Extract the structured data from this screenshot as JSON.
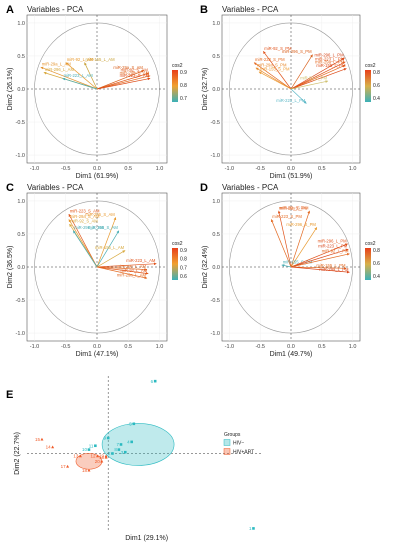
{
  "panels": [
    {
      "label": "A",
      "title": "Variables - PCA",
      "xlabel": "Dim1 (61.9%)",
      "ylabel": "Dim2 (26.1%)",
      "legend_title": "cos2",
      "legend_ticks": [
        "0.9",
        "0.8",
        "0.7"
      ],
      "x_ticks": [
        "-1.0",
        "-0.5",
        "0.0",
        "0.5",
        "1.0"
      ],
      "y_ticks": [
        "1.0",
        "0.5",
        "0.0",
        "-0.5",
        "-1.0"
      ],
      "vectors": [
        {
          "label": "miR-29a_S_AM",
          "x": 0.75,
          "y": 0.28,
          "color": "#d9601c"
        },
        {
          "label": "miR-92_S_AM",
          "x": 0.83,
          "y": 0.24,
          "color": "#e0561a"
        },
        {
          "label": "miR-296_S_AM",
          "x": 0.85,
          "y": 0.2,
          "color": "#e36a22"
        },
        {
          "label": "miR-223_S_AM",
          "x": 0.85,
          "y": 0.16,
          "color": "#dd4a17"
        },
        {
          "label": "miR-155_L_AM",
          "x": -0.2,
          "y": 0.4,
          "color": "#c8a23a"
        },
        {
          "label": "miR-92_L_AM",
          "x": -0.5,
          "y": 0.4,
          "color": "#e89a30"
        },
        {
          "label": "miR-29a_L_AM",
          "x": -0.9,
          "y": 0.33,
          "color": "#e49532"
        },
        {
          "label": "miR-296_L_AM",
          "x": -0.85,
          "y": 0.25,
          "color": "#d8a93e"
        },
        {
          "label": "miR-223_L_AM",
          "x": -0.55,
          "y": 0.16,
          "color": "#4aaeb5"
        }
      ]
    },
    {
      "label": "B",
      "title": "Variables - PCA",
      "xlabel": "Dim1 (51.9%)",
      "ylabel": "Dim2 (32.7%)",
      "legend_title": "cos2",
      "legend_ticks": [
        "0.8",
        "0.6",
        "0.4"
      ],
      "x_ticks": [
        "-1.0",
        "-0.5",
        "0.0",
        "0.5",
        "1.0"
      ],
      "y_ticks": [
        "1.0",
        "0.5",
        "0.0",
        "-0.5",
        "-1.0"
      ],
      "vectors": [
        {
          "label": "miR-92_S_PM",
          "x": -0.45,
          "y": 0.57,
          "color": "#e0521a"
        },
        {
          "label": "miR-296_S_PM",
          "x": 0.35,
          "y": 0.52,
          "color": "#d9601c"
        },
        {
          "label": "miR-223_S_PM",
          "x": -0.6,
          "y": 0.4,
          "color": "#e46b24"
        },
        {
          "label": "miR-29a_S_PM",
          "x": -0.57,
          "y": 0.32,
          "color": "#e88a2c"
        },
        {
          "label": "miR-155_S_PM",
          "x": -0.52,
          "y": 0.26,
          "color": "#ec9a32"
        },
        {
          "label": "miR-296_L_PM",
          "x": 0.87,
          "y": 0.47,
          "color": "#d9461a"
        },
        {
          "label": "miR-223_L_PM",
          "x": 0.88,
          "y": 0.41,
          "color": "#e0521a"
        },
        {
          "label": "miR-29a_L_PM",
          "x": 0.88,
          "y": 0.36,
          "color": "#e46b24"
        },
        {
          "label": "miR-155_L_PM",
          "x": 0.9,
          "y": 0.31,
          "color": "#dd4a17"
        },
        {
          "label": "miR-92_L_PM",
          "x": 0.6,
          "y": 0.12,
          "color": "#cfc06e"
        },
        {
          "label": "miR-223_L_PM",
          "x": 0.25,
          "y": -0.22,
          "color": "#5ab7c6"
        }
      ]
    },
    {
      "label": "C",
      "title": "Variables - PCA",
      "xlabel": "Dim1 (47.1%)",
      "ylabel": "Dim2 (36.5%)",
      "legend_title": "cos2",
      "legend_ticks": [
        "0.9",
        "0.8",
        "0.7",
        "0.6"
      ],
      "x_ticks": [
        "-1.0",
        "-0.5",
        "0.0",
        "0.5",
        "1.0"
      ],
      "y_ticks": [
        "1.0",
        "0.5",
        "0.0",
        "-0.5",
        "-1.0"
      ],
      "vectors": [
        {
          "label": "miR-223_S_AM",
          "x": -0.45,
          "y": 0.8,
          "color": "#e0561a"
        },
        {
          "label": "miR-29a_S_AM",
          "x": -0.45,
          "y": 0.72,
          "color": "#e89a30"
        },
        {
          "label": "miR-92_S_AM",
          "x": -0.44,
          "y": 0.65,
          "color": "#d8a93e"
        },
        {
          "label": "miR-296_S_AM",
          "x": -0.38,
          "y": 0.55,
          "color": "#4aaeb5"
        },
        {
          "label": "miR-296_S_AM",
          "x": 0.3,
          "y": 0.75,
          "color": "#e89a30"
        },
        {
          "label": "miR-155_S_AM",
          "x": 0.35,
          "y": 0.55,
          "color": "#4aaeb5"
        },
        {
          "label": "miR-155_L_AM",
          "x": 0.45,
          "y": 0.25,
          "color": "#d8a93e"
        },
        {
          "label": "miR-223_L_AM",
          "x": 0.95,
          "y": 0.05,
          "color": "#e0521a"
        },
        {
          "label": "miR-296_L_AM",
          "x": 0.8,
          "y": -0.04,
          "color": "#e46b24"
        },
        {
          "label": "miR-92_L_AM",
          "x": 0.82,
          "y": -0.1,
          "color": "#e0561a"
        },
        {
          "label": "miR-29a_L_AM",
          "x": 0.8,
          "y": -0.17,
          "color": "#e36a22"
        }
      ]
    },
    {
      "label": "D",
      "title": "Variables - PCA",
      "xlabel": "Dim1 (49.7%)",
      "ylabel": "Dim2 (32.4%)",
      "legend_title": "cos2",
      "legend_ticks": [
        "0.8",
        "0.6",
        "0.4"
      ],
      "x_ticks": [
        "-1.0",
        "-0.5",
        "0.0",
        "0.5",
        "1.0"
      ],
      "y_ticks": [
        "1.0",
        "0.5",
        "0.0",
        "-0.5",
        "-1.0"
      ],
      "vectors": [
        {
          "label": "miR-92_S_PM",
          "x": -0.2,
          "y": 0.85,
          "color": "#e0521a"
        },
        {
          "label": "miR-29a_S_PM",
          "x": 0.3,
          "y": 0.85,
          "color": "#e36a22"
        },
        {
          "label": "miR-223_S_PM",
          "x": -0.32,
          "y": 0.72,
          "color": "#e46b24"
        },
        {
          "label": "miR-296_S_PM",
          "x": 0.42,
          "y": 0.6,
          "color": "#e89a30"
        },
        {
          "label": "miR-155_S_PM",
          "x": -0.15,
          "y": 0.03,
          "color": "#4aaeb5"
        },
        {
          "label": "miR-296_L_PM",
          "x": 0.92,
          "y": 0.35,
          "color": "#e0521a"
        },
        {
          "label": "miR-223_L_PM",
          "x": 0.93,
          "y": 0.27,
          "color": "#d9461a"
        },
        {
          "label": "miR-92_L_PM",
          "x": 0.95,
          "y": 0.2,
          "color": "#e46b24"
        },
        {
          "label": "miR-155_L_PM",
          "x": 0.9,
          "y": -0.02,
          "color": "#e36a22"
        },
        {
          "label": "miR-29a_L_PM",
          "x": 0.95,
          "y": -0.08,
          "color": "#d9461a"
        }
      ]
    }
  ],
  "individuals": {
    "label": "E",
    "title": "Individuals - PCA",
    "xlabel": "Dim1 (29.1%)",
    "ylabel": "Dim2 (22.7%)",
    "legend_title": "Groups",
    "groups": [
      {
        "name": "HIV−",
        "color": "#2bbac1",
        "marker": "square"
      },
      {
        "name": "HIV+ART",
        "color": "#f05a28",
        "marker": "triangle"
      }
    ],
    "points": [
      {
        "label": "1",
        "x": 3.4,
        "y": -2.9,
        "group": 0
      },
      {
        "label": "6",
        "x": 1.1,
        "y": 2.8,
        "group": 0
      },
      {
        "label": "5",
        "x": 0.6,
        "y": 1.15,
        "group": 0
      },
      {
        "label": "9",
        "x": 0.0,
        "y": 0.6,
        "group": 0
      },
      {
        "label": "4",
        "x": 0.55,
        "y": 0.45,
        "group": 0
      },
      {
        "label": "7",
        "x": 0.3,
        "y": 0.35,
        "group": 0
      },
      {
        "label": "8",
        "x": 0.25,
        "y": 0.15,
        "group": 0
      },
      {
        "label": "2",
        "x": 0.1,
        "y": 0.0,
        "group": 0
      },
      {
        "label": "3",
        "x": 0.4,
        "y": 0.05,
        "group": 0
      },
      {
        "label": "10",
        "x": -0.45,
        "y": 0.15,
        "group": 0
      },
      {
        "label": "11",
        "x": -0.3,
        "y": 0.3,
        "group": 0
      },
      {
        "label": "15",
        "x": -1.55,
        "y": 0.55,
        "group": 1
      },
      {
        "label": "14",
        "x": -1.3,
        "y": 0.25,
        "group": 1
      },
      {
        "label": "13",
        "x": -0.65,
        "y": -0.1,
        "group": 1
      },
      {
        "label": "12",
        "x": -0.25,
        "y": -0.1,
        "group": 1
      },
      {
        "label": "19",
        "x": -0.05,
        "y": -0.1,
        "group": 1
      },
      {
        "label": "20",
        "x": -0.15,
        "y": -0.3,
        "group": 1
      },
      {
        "label": "16",
        "x": -0.05,
        "y": -0.15,
        "group": 1
      },
      {
        "label": "17",
        "x": -0.95,
        "y": -0.5,
        "group": 1
      },
      {
        "label": "18",
        "x": -0.45,
        "y": -0.65,
        "group": 1
      }
    ]
  }
}
